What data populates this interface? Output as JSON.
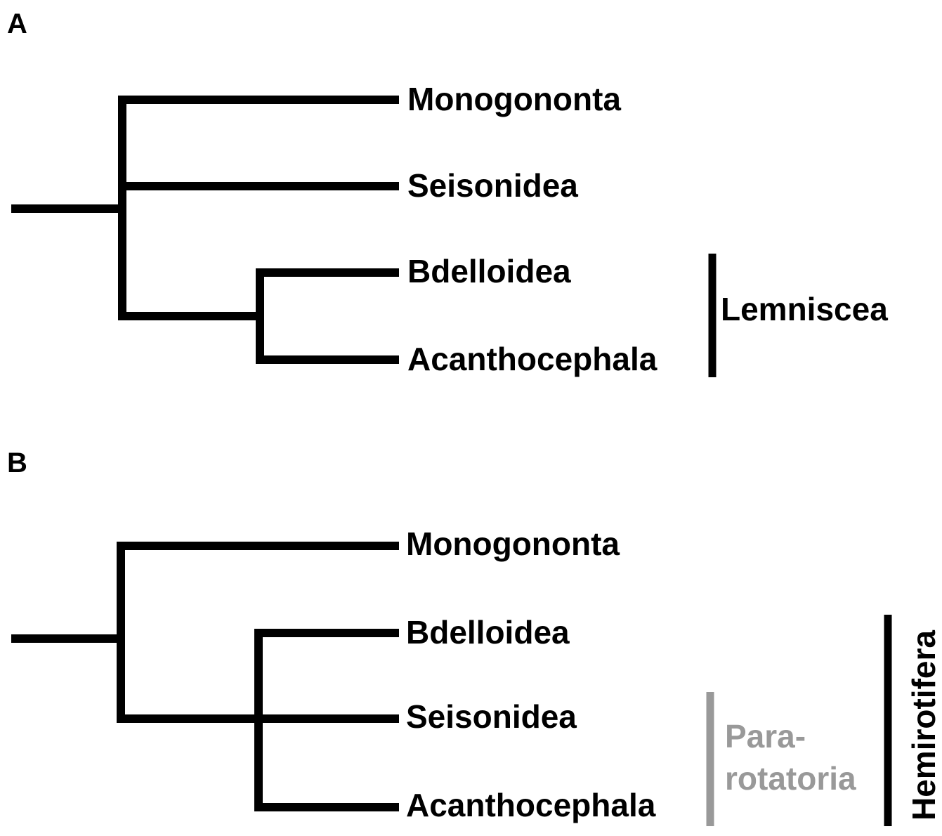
{
  "panels": {
    "a": {
      "label": "A",
      "taxa": [
        "Monogononta",
        "Seisonidea",
        "Bdelloidea",
        "Acanthocephala"
      ],
      "clades": {
        "lemniscea": "Lemniscea"
      }
    },
    "b": {
      "label": "B",
      "taxa": [
        "Monogononta",
        "Bdelloidea",
        "Seisonidea",
        "Acanthocephala"
      ],
      "clades": {
        "pararotatoria_line1": "Para-",
        "pararotatoria_line2": "rotatoria",
        "hemirotifera": "Hemirotifera"
      }
    }
  },
  "colors": {
    "tree": "#000000",
    "clade_primary": "#000000",
    "clade_secondary": "#999999"
  }
}
